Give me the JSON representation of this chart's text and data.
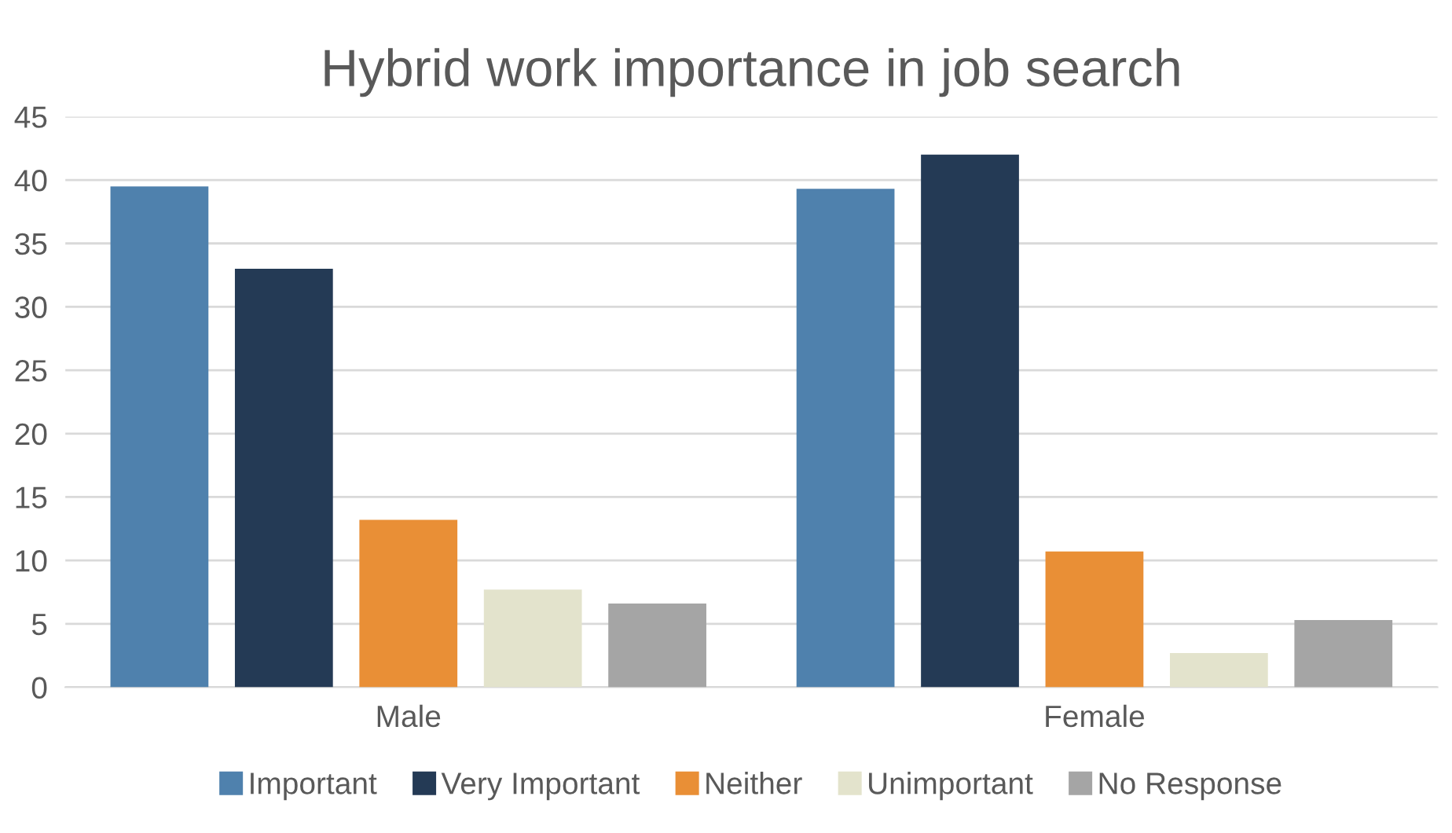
{
  "chart_data": {
    "type": "bar",
    "title": "Hybrid work importance in job search",
    "categories": [
      "Male",
      "Female"
    ],
    "series": [
      {
        "name": "Important",
        "color": "#4f81ad",
        "values": [
          39.5,
          39.3
        ]
      },
      {
        "name": "Very Important",
        "color": "#243a55",
        "values": [
          33.0,
          42.0
        ]
      },
      {
        "name": "Neither",
        "color": "#e98f36",
        "values": [
          13.2,
          10.7
        ]
      },
      {
        "name": "Unimportant",
        "color": "#e3e3cc",
        "values": [
          7.7,
          2.7
        ]
      },
      {
        "name": "No Response",
        "color": "#a5a5a5",
        "values": [
          6.6,
          5.3
        ]
      }
    ],
    "ylim": [
      0,
      45
    ],
    "yticks": [
      0,
      5,
      10,
      15,
      20,
      25,
      30,
      35,
      40,
      45
    ],
    "grid": "y",
    "legend": "bottom"
  }
}
